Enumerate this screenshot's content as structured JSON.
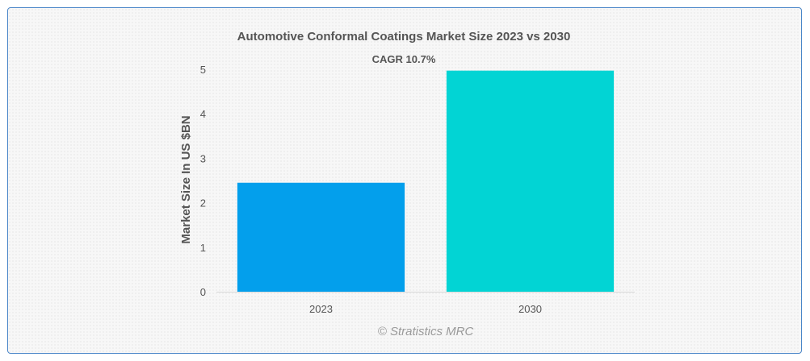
{
  "chart_data": {
    "type": "bar",
    "title": "Automotive Conformal Coatings Market Size 2023 vs 2030",
    "xlabel": "",
    "ylabel": "Market Size In US $BN",
    "categories": [
      "2023",
      "2030"
    ],
    "values": [
      2.45,
      4.97
    ],
    "colors": [
      "#039fec",
      "#02d4d4"
    ],
    "ylim": [
      0,
      5
    ],
    "yticks": [
      "0",
      "1",
      "2",
      "3",
      "4",
      "5"
    ],
    "grid": false,
    "annotation": "CAGR 10.7%"
  },
  "credit": "© Stratistics MRC"
}
